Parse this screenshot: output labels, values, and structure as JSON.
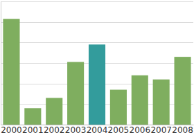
{
  "chart_data": {
    "type": "bar",
    "categories": [
      "2000",
      "2001",
      "2002",
      "2003",
      "2004",
      "2005",
      "2006",
      "2007",
      "2008"
    ],
    "values": [
      5.15,
      0.8,
      1.3,
      3.05,
      3.9,
      1.7,
      2.4,
      2.2,
      3.3
    ],
    "colors": [
      "#7fae5f",
      "#7fae5f",
      "#7fae5f",
      "#7fae5f",
      "#339c9c",
      "#7fae5f",
      "#7fae5f",
      "#7fae5f",
      "#7fae5f"
    ],
    "ylim": [
      0,
      6
    ],
    "yticks": [
      0,
      1,
      2,
      3,
      4,
      5,
      6
    ],
    "grid": true,
    "tick_labels": "x"
  }
}
